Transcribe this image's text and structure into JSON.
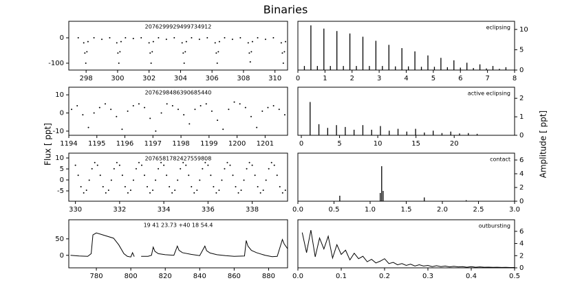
{
  "figure": {
    "title": "Binaries",
    "ylabel": "Flux [ ppt]",
    "y2label": "Amplitude [ ppt]"
  },
  "chart_data": [
    {
      "type": "scatter",
      "title": "2076299929499734912",
      "color": "#000000",
      "yaxis": "left",
      "xlim": [
        296.9,
        310.8
      ],
      "xticks": [
        298,
        300,
        302,
        304,
        306,
        308,
        310
      ],
      "ylim": [
        -127,
        65
      ],
      "yticks": [
        -100,
        0
      ],
      "x": [
        297.5,
        297.85,
        297.92,
        297.98,
        298.05,
        298.12,
        298.5,
        299,
        299.5,
        299.95,
        300.02,
        300.08,
        300.15,
        300.22,
        300.5,
        301,
        301.5,
        302,
        302.07,
        302.13,
        302.2,
        302.27,
        302.6,
        303.1,
        303.6,
        304.1,
        304.17,
        304.23,
        304.3,
        304.37,
        304.7,
        305.2,
        305.7,
        306.2,
        306.27,
        306.33,
        306.4,
        306.47,
        306.8,
        307.3,
        307.8,
        308.3,
        308.37,
        308.43,
        308.5,
        308.57,
        308.9,
        309.4,
        309.9,
        310.4,
        310.47,
        310.53,
        310.6,
        310.67
      ],
      "values": [
        0,
        -20,
        -60,
        -100,
        -55,
        -15,
        0,
        -6,
        0,
        -20,
        -60,
        -100,
        -55,
        -15,
        0,
        -3,
        0,
        -20,
        -60,
        -100,
        -55,
        -15,
        0,
        -6,
        0,
        -20,
        -60,
        -100,
        -55,
        -15,
        0,
        -6,
        0,
        -20,
        -60,
        -100,
        -55,
        -15,
        0,
        -6,
        0,
        -20,
        -60,
        -95,
        -55,
        -15,
        0,
        -6,
        0,
        -20,
        -60,
        -100,
        -55,
        -15
      ]
    },
    {
      "type": "stem",
      "title": "eclipsing",
      "color": "#000000",
      "yaxis": "right",
      "xlim": [
        0,
        8
      ],
      "xticks": [
        0,
        1,
        2,
        3,
        4,
        5,
        6,
        7,
        8
      ],
      "ylim": [
        0,
        12
      ],
      "yticks": [
        0,
        5,
        10
      ],
      "x": [
        0.24,
        0.48,
        0.72,
        0.96,
        1.2,
        1.44,
        1.68,
        1.92,
        2.16,
        2.4,
        2.64,
        2.88,
        3.12,
        3.36,
        3.6,
        3.84,
        4.08,
        4.32,
        4.56,
        4.8,
        5.04,
        5.28,
        5.52,
        5.76,
        6.0,
        6.24,
        6.48,
        6.72,
        6.96,
        7.2,
        7.44,
        7.68
      ],
      "values": [
        1,
        11,
        1,
        10.2,
        1,
        9.6,
        1,
        9,
        1,
        8.2,
        1,
        7.2,
        1,
        6.2,
        0.9,
        5.4,
        0.9,
        4.6,
        0.8,
        3.6,
        0.8,
        3,
        0.7,
        2.4,
        0.6,
        1.8,
        0.5,
        1.4,
        0.4,
        1,
        0.3,
        0.7
      ]
    },
    {
      "type": "scatter",
      "title": "2076298486390685440",
      "color": "#000000",
      "yaxis": "left",
      "xlim": [
        1194,
        1201.8
      ],
      "xticks": [
        1194,
        1195,
        1196,
        1197,
        1198,
        1199,
        1200,
        1201
      ],
      "ylim": [
        -12.3,
        14.2
      ],
      "yticks": [
        -10,
        0,
        10
      ],
      "x": [
        1194.1,
        1194.3,
        1194.5,
        1194.7,
        1194.9,
        1195.1,
        1195.3,
        1195.5,
        1195.7,
        1195.9,
        1196.1,
        1196.3,
        1196.5,
        1196.7,
        1196.9,
        1197.1,
        1197.3,
        1197.5,
        1197.7,
        1197.9,
        1198.1,
        1198.3,
        1198.5,
        1198.7,
        1198.9,
        1199.1,
        1199.3,
        1199.5,
        1199.7,
        1199.9,
        1200.1,
        1200.3,
        1200.5,
        1200.7,
        1200.9,
        1201.1,
        1201.3,
        1201.5,
        1201.7
      ],
      "values": [
        2,
        4,
        -1,
        -8,
        0,
        3,
        5,
        2,
        -2,
        -9,
        1,
        4,
        5,
        3,
        -3,
        -10,
        0,
        5,
        4,
        2,
        -1,
        -6,
        2,
        4,
        5,
        1,
        -4,
        -9,
        2,
        6,
        5,
        3,
        -2,
        -8,
        1,
        3,
        4,
        2,
        -1
      ]
    },
    {
      "type": "stem",
      "title": "active eclipsing",
      "color": "#000000",
      "yaxis": "right",
      "xlim": [
        -0.45,
        27.9
      ],
      "xticks": [
        0,
        5,
        10,
        15,
        20
      ],
      "ylim": [
        0,
        2.6
      ],
      "yticks": [
        0,
        1,
        2
      ],
      "x": [
        1.15,
        2.3,
        3.45,
        4.6,
        5.75,
        6.9,
        8.05,
        9.2,
        10.35,
        11.5,
        12.65,
        13.8,
        14.95,
        16.1,
        17.25,
        18.4,
        19.55,
        20.7,
        21.85,
        23
      ],
      "values": [
        1.8,
        0.6,
        0.4,
        0.55,
        0.45,
        0.3,
        0.55,
        0.3,
        0.5,
        0.25,
        0.35,
        0.2,
        0.35,
        0.15,
        0.25,
        0.12,
        0.2,
        0.1,
        0.12,
        0.08
      ]
    },
    {
      "type": "scatter",
      "title": "2076581782427559808",
      "color": "#000000",
      "yaxis": "left",
      "xlim": [
        329.7,
        339.6
      ],
      "xticks": [
        330,
        332,
        334,
        336,
        338
      ],
      "ylim": [
        -9.7,
        12.2
      ],
      "yticks": [
        -5,
        0,
        5,
        10
      ],
      "x": [
        330,
        330.125,
        330.25,
        330.375,
        330.5,
        330.625,
        330.75,
        330.875,
        331,
        331.125,
        331.25,
        331.375,
        331.5,
        331.625,
        331.75,
        331.875,
        332,
        332.125,
        332.25,
        332.375,
        332.5,
        332.625,
        332.75,
        332.875,
        333,
        333.125,
        333.25,
        333.375,
        333.5,
        333.625,
        333.75,
        333.875,
        334,
        334.125,
        334.25,
        334.375,
        334.5,
        334.625,
        334.75,
        334.875,
        335,
        335.125,
        335.25,
        335.375,
        335.5,
        335.625,
        335.75,
        335.875,
        336,
        336.125,
        336.25,
        336.375,
        336.5,
        336.625,
        336.75,
        336.875,
        337,
        337.125,
        337.25,
        337.375,
        337.5,
        337.625,
        337.75,
        337.875,
        338,
        338.125,
        338.25,
        338.375,
        338.5,
        338.625,
        338.75,
        338.875,
        339,
        339.125,
        339.25,
        339.375,
        339.5
      ],
      "values": [
        6.7,
        2.1,
        -3.1,
        -5.9,
        -4.7,
        -0.1,
        5.1,
        7.9,
        6.7,
        2.1,
        -3.1,
        -5.9,
        -4.7,
        -0.1,
        5.1,
        7.9,
        6.7,
        2.1,
        -3.1,
        -5.9,
        -4.7,
        -0.1,
        5.1,
        7.9,
        6.7,
        2.1,
        -3.1,
        -5.9,
        -4.7,
        -0.1,
        5.1,
        7.9,
        6.7,
        2.1,
        -3.1,
        -5.9,
        -4.7,
        -0.1,
        5.1,
        7.9,
        6.7,
        2.1,
        -3.1,
        -5.9,
        -4.7,
        -0.1,
        5.1,
        7.9,
        6.7,
        2.1,
        -3.1,
        -5.9,
        -4.7,
        -0.1,
        5.1,
        7.9,
        6.7,
        2.1,
        -3.1,
        -5.9,
        -4.7,
        -0.1,
        5.1,
        7.9,
        6.7,
        2.1,
        -3.1,
        -5.9,
        -4.7,
        -0.1,
        5.1,
        7.9,
        6.7,
        2.1,
        -3.1,
        -5.9,
        -4.7
      ]
    },
    {
      "type": "stem",
      "title": "contact",
      "color": "#000000",
      "yaxis": "right",
      "xlim": [
        0,
        3
      ],
      "xticks": [
        {
          "value": 0,
          "label": "0.0"
        },
        0.5,
        {
          "value": 1,
          "label": "1.0"
        },
        1.5,
        {
          "value": 2,
          "label": "2.0"
        },
        2.5,
        {
          "value": 3,
          "label": "3.0"
        }
      ],
      "ylim": [
        0,
        7
      ],
      "yticks": [
        0,
        2,
        4,
        6
      ],
      "x": [
        0.58,
        1.14,
        1.16,
        1.18,
        1.75,
        2.33
      ],
      "values": [
        0.8,
        1.2,
        5.1,
        1.5,
        0.55,
        0.15
      ]
    },
    {
      "type": "line",
      "title": "19 41 23.73 +40 18 54.4",
      "color": "#000000",
      "yaxis": "left",
      "xlim": [
        764,
        891
      ],
      "xticks": [
        780,
        800,
        820,
        840,
        860,
        880
      ],
      "ylim": [
        -38,
        108
      ],
      "yticks": [
        0,
        50
      ],
      "x": [
        765,
        770,
        775,
        777,
        778,
        780,
        785,
        790,
        793,
        796,
        798,
        800,
        801,
        802,
        804,
        806,
        810,
        812,
        813,
        814,
        816,
        820,
        825,
        827,
        828,
        830,
        835,
        840,
        843,
        844,
        846,
        850,
        855,
        860,
        866,
        867,
        868,
        870,
        873,
        878,
        882,
        885,
        888,
        889,
        891
      ],
      "values": [
        0,
        -2,
        -3,
        5,
        62,
        68,
        60,
        52,
        32,
        5,
        -3,
        -5,
        8,
        -4,
        null,
        -3,
        -3,
        0,
        25,
        12,
        5,
        2,
        0,
        28,
        15,
        8,
        3,
        -1,
        28,
        14,
        7,
        2,
        -1,
        -3,
        -2,
        45,
        28,
        15,
        8,
        0,
        -4,
        -3,
        48,
        35,
        20
      ]
    },
    {
      "type": "line",
      "title": "outbursting",
      "color": "#000000",
      "yaxis": "right",
      "xlim": [
        0,
        0.5
      ],
      "xticks": [
        {
          "value": 0,
          "label": "0.0"
        },
        0.1,
        0.2,
        0.3,
        0.4,
        0.5
      ],
      "ylim": [
        0,
        7.9
      ],
      "yticks": [
        0,
        2,
        4,
        6
      ],
      "x": [
        0.01,
        0.02,
        0.03,
        0.04,
        0.05,
        0.06,
        0.07,
        0.08,
        0.09,
        0.1,
        0.11,
        0.12,
        0.13,
        0.14,
        0.15,
        0.16,
        0.17,
        0.18,
        0.19,
        0.2,
        0.21,
        0.22,
        0.23,
        0.24,
        0.25,
        0.26,
        0.27,
        0.28,
        0.29,
        0.3,
        0.31,
        0.32,
        0.33,
        0.34,
        0.35,
        0.36,
        0.37,
        0.38,
        0.39,
        0.4,
        0.41,
        0.42,
        0.43,
        0.44,
        0.45,
        0.46,
        0.47,
        0.48,
        0.49,
        0.5
      ],
      "values": [
        5.8,
        2.5,
        6.2,
        1.8,
        4.9,
        3.1,
        5.2,
        1.6,
        3.8,
        2.2,
        2.9,
        1.3,
        2.4,
        1.5,
        1.9,
        1,
        1.4,
        0.8,
        1.1,
        1.5,
        0.7,
        0.9,
        0.5,
        0.7,
        0.4,
        0.6,
        0.3,
        0.5,
        0.3,
        0.4,
        0.2,
        0.35,
        0.2,
        0.3,
        0.15,
        0.25,
        0.15,
        0.2,
        0.1,
        0.2,
        0.1,
        0.15,
        0.1,
        0.12,
        0.08,
        0.1,
        0.07,
        0.08,
        0.05,
        0.06
      ]
    }
  ]
}
